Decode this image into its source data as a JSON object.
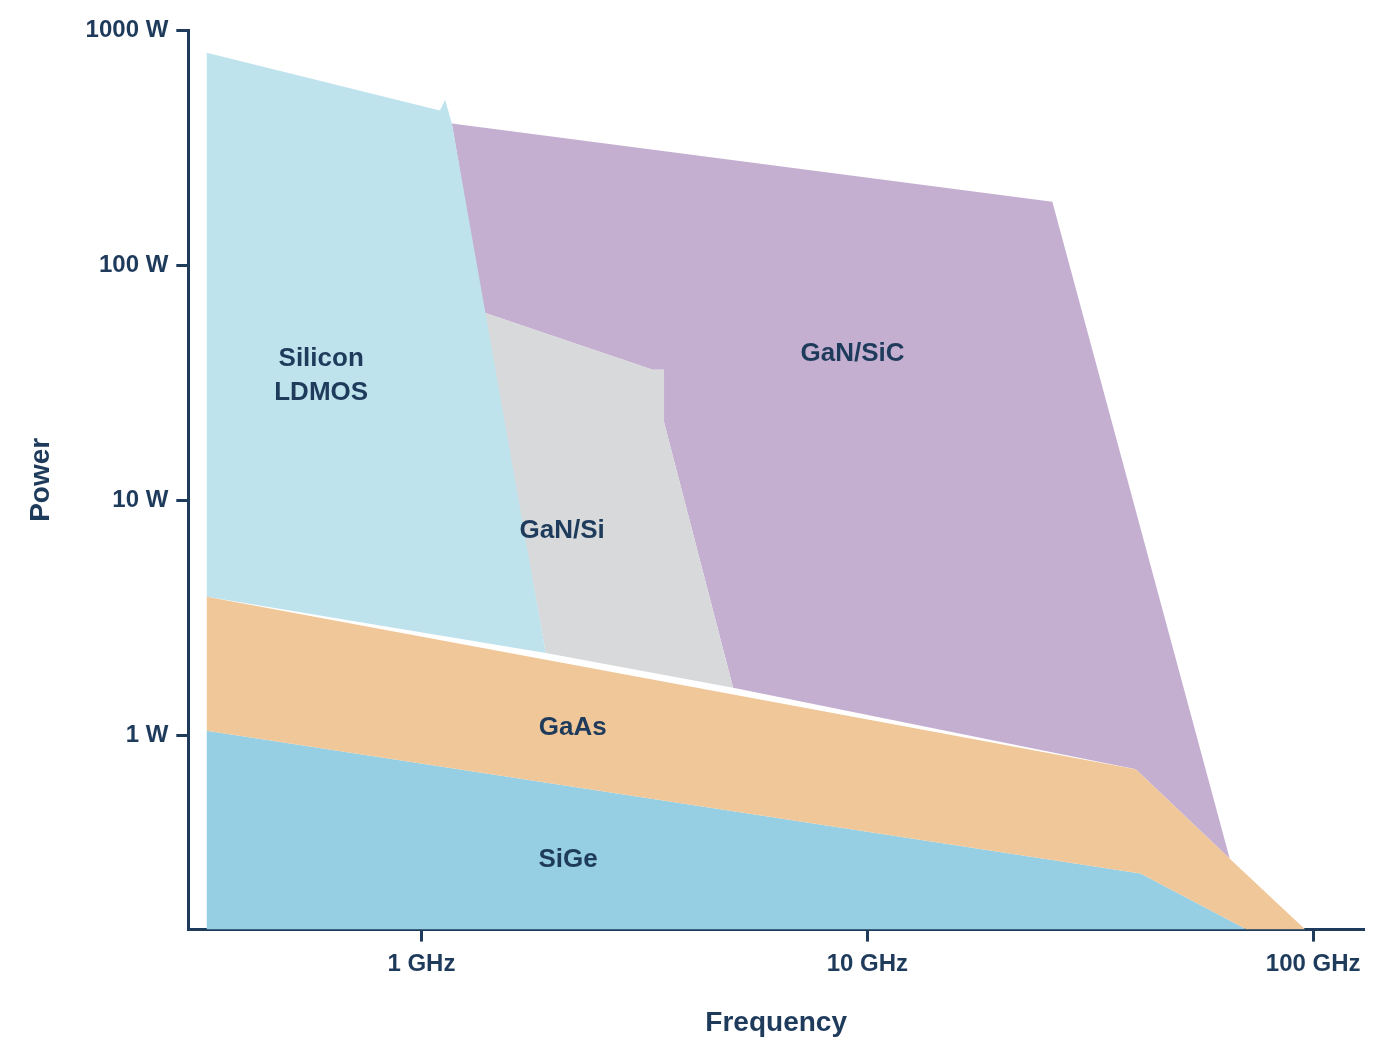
{
  "chart_data": {
    "type": "area",
    "x_label": "Frequency",
    "y_label": "Power",
    "log": true,
    "grid": false,
    "xlim": [
      0.33,
      130
    ],
    "ylim": [
      0.15,
      1000
    ],
    "xticks": [
      {
        "value": 1,
        "label": "1 GHz"
      },
      {
        "value": 10,
        "label": "10 GHz"
      },
      {
        "value": 100,
        "label": "100 GHz"
      }
    ],
    "yticks": [
      {
        "value": 1,
        "label": "1 W"
      },
      {
        "value": 10,
        "label": "10 W"
      },
      {
        "value": 100,
        "label": "100 W"
      },
      {
        "value": 1000,
        "label": "1000 W"
      }
    ],
    "series": [
      {
        "name": "GaAs",
        "color": "#f0c799",
        "x": [
          0.33,
          0.33,
          40,
          65,
          96,
          71,
          41
        ],
        "values": [
          1.05,
          3.9,
          0.72,
          0.3,
          0.15,
          0.15,
          0.26
        ]
      },
      {
        "name": "SiGe",
        "color": "#96cfe3",
        "x": [
          0.33,
          0.33,
          41,
          71
        ],
        "values": [
          0.15,
          1.05,
          0.26,
          0.15
        ]
      },
      {
        "name": "Silicon LDMOS",
        "color": "#bfe3ec",
        "x": [
          0.33,
          0.33,
          1.1,
          1.13,
          1.17,
          1.9
        ],
        "values": [
          3.9,
          800,
          455,
          505,
          400,
          2.25
        ]
      },
      {
        "name": "GaN/Si",
        "color": "#d7d9db",
        "x": [
          1.9,
          1.38,
          3.3,
          3.5,
          3.5,
          5
        ],
        "values": [
          2.25,
          63,
          36,
          36,
          21.5,
          1.6
        ]
      },
      {
        "name": "GaN/SiC",
        "color": "#c5afd1",
        "x": [
          1.17,
          26,
          65,
          40,
          5,
          3.5,
          3.5,
          3.3,
          1.38
        ],
        "values": [
          400,
          186,
          0.3,
          0.72,
          1.6,
          21.5,
          36,
          36,
          63
        ]
      }
    ]
  }
}
